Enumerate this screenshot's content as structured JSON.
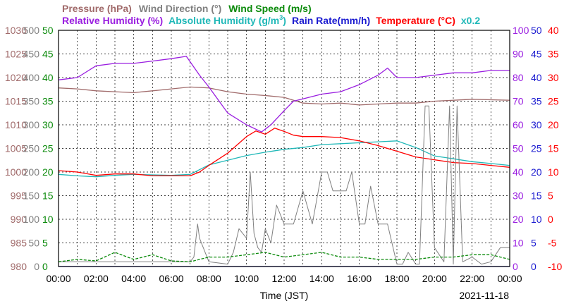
{
  "chart_data": {
    "type": "line",
    "title": "",
    "xlabel": "Time (JST)",
    "date_label": "2021-11-18",
    "x_ticks": [
      "00:00",
      "02:00",
      "04:00",
      "06:00",
      "08:00",
      "10:00",
      "12:00",
      "14:00",
      "16:00",
      "18:00",
      "20:00",
      "22:00",
      "00:00"
    ],
    "x_range_hours": [
      0,
      24
    ],
    "grid": true,
    "legend": {
      "row1": [
        {
          "text": "Pressure (hPa)",
          "color": "#a06a6a"
        },
        {
          "text": "Wind Direction (°)",
          "color": "#808080"
        },
        {
          "text": "Wind Speed (m/s)",
          "color": "#0a8a0a"
        }
      ],
      "row2": [
        {
          "text": "Relative Humidity (%)",
          "color": "#9a1ee0"
        },
        {
          "text": "Absolute Humidity (g/m",
          "sup": "3",
          "close": ")",
          "color": "#20b8b8"
        },
        {
          "text": "Rain Rate(mm/h)",
          "color": "#1a1ad0"
        },
        {
          "text": "Temperature (°C)",
          "color": "#ff0000"
        },
        {
          "text": "x0.2",
          "color": "#20b8b8"
        }
      ]
    },
    "axes": [
      {
        "name": "pressure",
        "unit": "hPa",
        "color": "#a06a6a",
        "side": "left",
        "range": [
          980,
          1030
        ],
        "ticks": [
          "1030",
          "1025",
          "1020",
          "1015",
          "1010",
          "1005",
          "1000",
          "995",
          "990",
          "985",
          "980"
        ]
      },
      {
        "name": "wind_direction",
        "unit": "°",
        "color": "#808080",
        "side": "left",
        "range": [
          0,
          500
        ],
        "ticks": [
          "500",
          "450",
          "400",
          "350",
          "300",
          "250",
          "200",
          "150",
          "100",
          "50",
          "0"
        ]
      },
      {
        "name": "wind_speed",
        "unit": "m/s",
        "color": "#0a8a0a",
        "side": "left",
        "range": [
          0,
          50
        ],
        "ticks": [
          "50",
          "45",
          "40",
          "35",
          "30",
          "25",
          "20",
          "15",
          "10",
          "5",
          "0"
        ]
      },
      {
        "name": "relative_humidity",
        "unit": "%",
        "color": "#9a1ee0",
        "side": "right",
        "range": [
          0,
          100
        ],
        "ticks": [
          "100",
          "90",
          "80",
          "70",
          "60",
          "50",
          "40",
          "30",
          "20",
          "10",
          "0"
        ]
      },
      {
        "name": "rain_rate",
        "unit": "mm/h",
        "color": "#1a1ad0",
        "side": "right",
        "range": [
          0,
          50
        ],
        "ticks": [
          "50",
          "45",
          "40",
          "35",
          "30",
          "25",
          "20",
          "15",
          "10",
          "5",
          "0"
        ]
      },
      {
        "name": "temperature",
        "unit": "°C",
        "color": "#ff0000",
        "side": "right",
        "range": [
          -10,
          40
        ],
        "ticks": [
          "40",
          "35",
          "30",
          "25",
          "20",
          "15",
          "10",
          "5",
          "0",
          "-5",
          "-10"
        ]
      }
    ],
    "series": [
      {
        "name": "Pressure (hPa)",
        "axis": "pressure",
        "color": "#a06a6a",
        "x": [
          0,
          1,
          2,
          3,
          4,
          5,
          6,
          7,
          8,
          9,
          10,
          11,
          12,
          13,
          14,
          15,
          16,
          17,
          18,
          19,
          20,
          21,
          22,
          23,
          24
        ],
        "y": [
          1017.8,
          1017.6,
          1017.2,
          1017.0,
          1016.8,
          1017.2,
          1017.6,
          1018.0,
          1017.8,
          1017.0,
          1016.5,
          1016.2,
          1015.8,
          1014.6,
          1014.4,
          1014.6,
          1014.2,
          1014.4,
          1014.6,
          1014.6,
          1015.0,
          1015.2,
          1015.4,
          1015.3,
          1015.2
        ]
      },
      {
        "name": "Relative Humidity (%)",
        "axis": "relative_humidity",
        "color": "#9a1ee0",
        "x": [
          0,
          1,
          2,
          3,
          4,
          5,
          6,
          6.8,
          7.5,
          8,
          9,
          10,
          10.8,
          11.3,
          12,
          12.5,
          13,
          14,
          15,
          16,
          17,
          17.5,
          18,
          19,
          20,
          21,
          22,
          23,
          24
        ],
        "y": [
          79,
          80,
          85,
          86,
          86,
          87,
          88,
          89,
          81,
          76,
          65,
          60,
          57,
          60,
          66,
          70,
          71,
          73,
          74,
          77,
          81,
          84,
          80,
          80,
          81,
          82,
          82,
          83,
          83
        ]
      },
      {
        "name": "Absolute Humidity (g/m3)",
        "axis": "absolute_humidity",
        "color": "#20b8b8",
        "x": [
          0,
          1,
          2,
          3,
          4,
          5,
          6,
          7,
          8,
          9,
          10,
          11,
          12,
          13,
          14,
          15,
          16,
          17,
          18,
          19,
          20,
          21,
          22,
          23,
          24
        ],
        "y": [
          19.5,
          19.2,
          19.0,
          19.3,
          19.5,
          19.4,
          19.3,
          19.5,
          21.5,
          22.5,
          23.5,
          24.2,
          24.8,
          25.2,
          25.8,
          26.0,
          26.2,
          26.4,
          26.6,
          25.2,
          23.4,
          22.8,
          22.2,
          21.8,
          21.4
        ]
      },
      {
        "name": "Temperature (°C)",
        "axis": "temperature",
        "color": "#ff0000",
        "x": [
          0,
          1,
          2,
          3,
          4,
          5,
          6,
          7,
          7.5,
          8,
          9,
          10,
          10.5,
          11,
          11.5,
          12,
          12.5,
          13,
          14,
          15,
          16,
          17,
          18,
          19,
          20,
          21,
          22,
          23,
          24
        ],
        "y": [
          10.3,
          10.0,
          9.3,
          9.6,
          9.6,
          9.2,
          9.2,
          9.2,
          10.0,
          11.4,
          14.0,
          17.5,
          18.7,
          18.0,
          19.3,
          18.6,
          17.8,
          17.5,
          17.5,
          17.3,
          16.6,
          15.6,
          14.4,
          13.2,
          12.6,
          12.0,
          11.8,
          11.4,
          11.0
        ]
      },
      {
        "name": "Wind Direction (°)",
        "axis": "wind_direction",
        "color": "#808080",
        "x": [
          0,
          7,
          7.2,
          7.4,
          7.5,
          7.7,
          8,
          9,
          9.3,
          9.6,
          10,
          10.2,
          10.4,
          10.6,
          10.8,
          11,
          11.3,
          11.6,
          12,
          12.5,
          13,
          13.5,
          14,
          14.3,
          14.6,
          15,
          15.3,
          15.6,
          16,
          16.3,
          16.6,
          17,
          17.5,
          18,
          18.3,
          18.6,
          19,
          19.2,
          19.5,
          19.7,
          20,
          20.5,
          20.8,
          21,
          21.2,
          21.5,
          22,
          22.5,
          23,
          23.5,
          24
        ],
        "y": [
          10,
          10,
          20,
          90,
          60,
          40,
          10,
          5,
          30,
          80,
          60,
          200,
          70,
          40,
          30,
          80,
          50,
          130,
          90,
          90,
          160,
          90,
          200,
          200,
          160,
          160,
          160,
          200,
          90,
          90,
          170,
          90,
          90,
          5,
          5,
          30,
          5,
          5,
          340,
          340,
          40,
          10,
          340,
          5,
          340,
          10,
          20,
          5,
          10,
          40,
          40
        ]
      },
      {
        "name": "Wind Speed (m/s)",
        "axis": "wind_speed",
        "color": "#0a8a0a",
        "x": [
          0,
          1,
          2,
          3,
          4,
          5,
          6,
          7,
          8,
          9,
          10,
          11,
          12,
          13,
          14,
          15,
          16,
          17,
          18,
          19,
          20,
          21,
          22,
          23,
          24
        ],
        "y": [
          1.0,
          1.5,
          1.2,
          3.0,
          1.5,
          2.5,
          1.2,
          1.0,
          2.0,
          2.0,
          2.5,
          3.0,
          2.0,
          2.5,
          3.0,
          2.0,
          2.0,
          1.5,
          1.5,
          1.5,
          2.0,
          2.0,
          2.5,
          2.5,
          1.5
        ]
      },
      {
        "name": "Rain Rate(mm/h)",
        "axis": "rain_rate",
        "color": "#1a1ad0",
        "x": [
          0,
          24
        ],
        "y": [
          0,
          0
        ]
      }
    ]
  }
}
